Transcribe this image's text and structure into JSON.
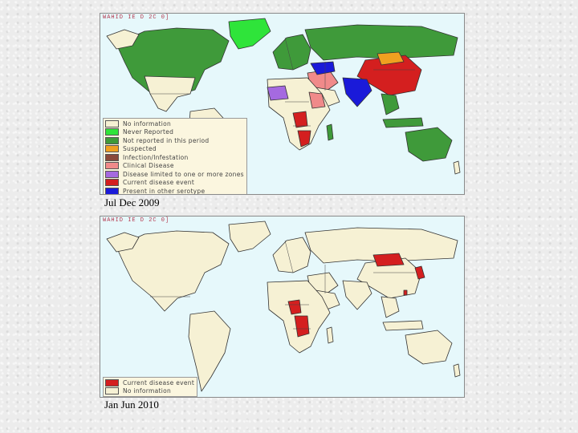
{
  "map1": {
    "header": "WAHID IE D 2C 0]",
    "period": "Jul Dec 2009",
    "legend": [
      {
        "label": "No information",
        "color": "#f6f1d4"
      },
      {
        "label": "Never Reported",
        "color": "#2fe43a"
      },
      {
        "label": "Not reported in this period",
        "color": "#3f9a3a"
      },
      {
        "label": "Suspected",
        "color": "#f0a020"
      },
      {
        "label": "Infection/Infestation",
        "color": "#8a4a3a"
      },
      {
        "label": "Clinical Disease",
        "color": "#f08a8a"
      },
      {
        "label": "Disease limited to one or more zones",
        "color": "#a56ae0"
      },
      {
        "label": "Current disease event",
        "color": "#d41f1f"
      },
      {
        "label": "Present in other serotype",
        "color": "#1a1ad9"
      }
    ]
  },
  "map2": {
    "header": "WAHID IE D 2C 0]",
    "period": "Jan Jun 2010",
    "legend": [
      {
        "label": "Current disease event",
        "color": "#d41f1f"
      },
      {
        "label": "No information",
        "color": "#f6f1d4"
      }
    ]
  }
}
